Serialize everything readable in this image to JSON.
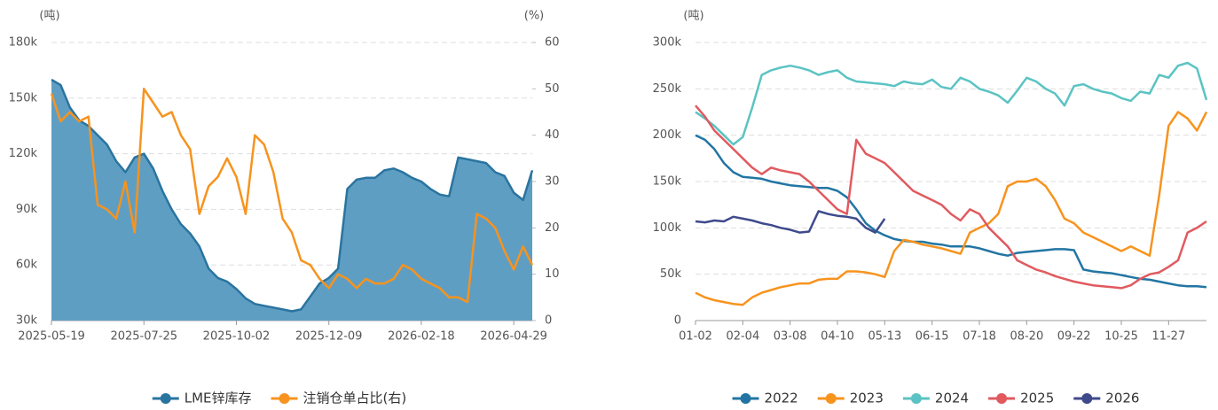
{
  "chart_data": [
    {
      "type": "line",
      "y_label": "(吨)",
      "y2_label": "(%)",
      "categories": [
        "2025-05-19",
        null,
        null,
        null,
        null,
        null,
        null,
        null,
        null,
        null,
        "2025-07-25",
        null,
        null,
        null,
        null,
        null,
        null,
        null,
        null,
        null,
        "2025-10-02",
        null,
        null,
        null,
        null,
        null,
        null,
        null,
        null,
        null,
        "2025-12-09",
        null,
        null,
        null,
        null,
        null,
        null,
        null,
        null,
        null,
        "2026-02-18",
        null,
        null,
        null,
        null,
        null,
        null,
        null,
        null,
        null,
        "2026-04-29",
        null,
        null
      ],
      "ylim": [
        30000,
        180000
      ],
      "yticks": [
        {
          "value": 30000,
          "label": "30k"
        },
        {
          "value": 60000,
          "label": "60k"
        },
        {
          "value": 90000,
          "label": "90k"
        },
        {
          "value": 120000,
          "label": "120k"
        },
        {
          "value": 150000,
          "label": "150k"
        },
        {
          "value": 180000,
          "label": "180k"
        }
      ],
      "y2lim": [
        0,
        60
      ],
      "y2ticks": [
        0,
        10,
        20,
        30,
        40,
        50,
        60
      ],
      "grid": true,
      "series": [
        {
          "name": "LME锌库存",
          "type": "area",
          "color": "#2a74a0",
          "fill": "#5f9ec3",
          "values": [
            160000,
            157000,
            145000,
            138000,
            135000,
            130000,
            125000,
            116000,
            110000,
            118000,
            120000,
            112000,
            100000,
            90000,
            82000,
            77000,
            70000,
            58000,
            53000,
            51000,
            47000,
            42000,
            39000,
            38000,
            37000,
            36000,
            35000,
            36000,
            43000,
            50000,
            53000,
            58000,
            101000,
            106000,
            107000,
            107000,
            111000,
            112000,
            110000,
            107000,
            105000,
            101000,
            98000,
            97000,
            118000,
            117000,
            116000,
            115000,
            110000,
            108000,
            99000,
            95000,
            111000
          ]
        },
        {
          "name": "注销仓单占比(右)",
          "type": "line",
          "axis": "y2",
          "color": "#f7931e",
          "values": [
            49,
            43,
            45,
            43,
            44,
            25,
            24,
            22,
            30,
            19,
            50,
            47,
            44,
            45,
            40,
            37,
            23,
            29,
            31,
            35,
            31,
            23,
            40,
            38,
            32,
            22,
            19,
            13,
            12,
            9,
            7,
            10,
            9,
            7,
            9,
            8,
            8,
            9,
            12,
            11,
            9,
            8,
            7,
            5,
            5,
            4,
            23,
            22,
            20,
            15,
            11,
            16,
            12
          ]
        }
      ]
    },
    {
      "type": "line",
      "y_label": "(吨)",
      "categories": [
        "01-02",
        null,
        null,
        null,
        null,
        "02-04",
        null,
        null,
        null,
        null,
        "03-08",
        null,
        null,
        null,
        null,
        "04-10",
        null,
        null,
        null,
        null,
        "05-13",
        null,
        null,
        null,
        null,
        "06-15",
        null,
        null,
        null,
        null,
        "07-18",
        null,
        null,
        null,
        null,
        "08-20",
        null,
        null,
        null,
        null,
        "09-22",
        null,
        null,
        null,
        null,
        "10-25",
        null,
        null,
        null,
        null,
        "11-27",
        null,
        null,
        null,
        null
      ],
      "ylim": [
        0,
        300000
      ],
      "yticks": [
        0,
        {
          "value": 50000,
          "label": "50k"
        },
        {
          "value": 100000,
          "label": "100k"
        },
        {
          "value": 150000,
          "label": "150k"
        },
        {
          "value": 200000,
          "label": "200k"
        },
        {
          "value": 250000,
          "label": "250k"
        },
        {
          "value": 300000,
          "label": "300k"
        }
      ],
      "grid": true,
      "series": [
        {
          "name": "2022",
          "type": "line",
          "color": "#2275a3",
          "values": [
            200000,
            195000,
            185000,
            170000,
            160000,
            155000,
            154000,
            153000,
            150000,
            148000,
            146000,
            145000,
            144000,
            143000,
            143000,
            140000,
            133000,
            120000,
            105000,
            97000,
            92000,
            88000,
            86000,
            85000,
            85000,
            83000,
            82000,
            80000,
            80000,
            80000,
            78000,
            75000,
            72000,
            70000,
            73000,
            74000,
            75000,
            76000,
            77000,
            77000,
            76000,
            55000,
            53000,
            52000,
            51000,
            49000,
            47000,
            45000,
            44000,
            42000,
            40000,
            38000,
            37000,
            37000,
            36000
          ]
        },
        {
          "name": "2023",
          "type": "line",
          "color": "#f7931e",
          "values": [
            30000,
            25000,
            22000,
            20000,
            18000,
            17000,
            25000,
            30000,
            33000,
            36000,
            38000,
            40000,
            40000,
            44000,
            45000,
            45000,
            53000,
            53000,
            52000,
            50000,
            47000,
            75000,
            87000,
            85000,
            82000,
            80000,
            78000,
            75000,
            72000,
            95000,
            100000,
            105000,
            115000,
            145000,
            150000,
            150000,
            153000,
            145000,
            130000,
            110000,
            105000,
            95000,
            90000,
            85000,
            80000,
            75000,
            80000,
            75000,
            70000,
            135000,
            210000,
            225000,
            218000,
            205000,
            225000
          ]
        },
        {
          "name": "2024",
          "type": "line",
          "color": "#5bc3c3",
          "values": [
            225000,
            218000,
            210000,
            200000,
            190000,
            198000,
            230000,
            265000,
            270000,
            273000,
            275000,
            273000,
            270000,
            265000,
            268000,
            270000,
            262000,
            258000,
            257000,
            256000,
            255000,
            253000,
            258000,
            256000,
            255000,
            260000,
            252000,
            250000,
            262000,
            258000,
            250000,
            247000,
            243000,
            235000,
            248000,
            262000,
            258000,
            250000,
            245000,
            232000,
            253000,
            255000,
            250000,
            247000,
            245000,
            240000,
            237000,
            247000,
            245000,
            265000,
            262000,
            275000,
            278000,
            272000,
            238000
          ]
        },
        {
          "name": "2025",
          "type": "line",
          "color": "#e05a5f",
          "values": [
            232000,
            220000,
            205000,
            195000,
            185000,
            175000,
            165000,
            158000,
            165000,
            162000,
            160000,
            158000,
            150000,
            140000,
            130000,
            120000,
            115000,
            195000,
            180000,
            175000,
            170000,
            160000,
            150000,
            140000,
            135000,
            130000,
            125000,
            115000,
            108000,
            120000,
            115000,
            100000,
            90000,
            80000,
            65000,
            60000,
            55000,
            52000,
            48000,
            45000,
            42000,
            40000,
            38000,
            37000,
            36000,
            35000,
            38000,
            45000,
            50000,
            52000,
            58000,
            65000,
            95000,
            100000,
            107000
          ]
        },
        {
          "name": "2026",
          "type": "line",
          "color": "#3f4a8c",
          "values": [
            107000,
            106000,
            108000,
            107000,
            112000,
            110000,
            108000,
            105000,
            103000,
            100000,
            98000,
            95000,
            96000,
            118000,
            115000,
            113000,
            112000,
            110000,
            100000,
            95000,
            110000,
            null,
            null,
            null,
            null,
            null,
            null,
            null,
            null,
            null,
            null,
            null,
            null,
            null,
            null,
            null,
            null,
            null,
            null,
            null,
            null,
            null,
            null,
            null,
            null,
            null,
            null,
            null,
            null,
            null,
            null,
            null,
            null,
            null,
            null
          ]
        }
      ]
    }
  ]
}
